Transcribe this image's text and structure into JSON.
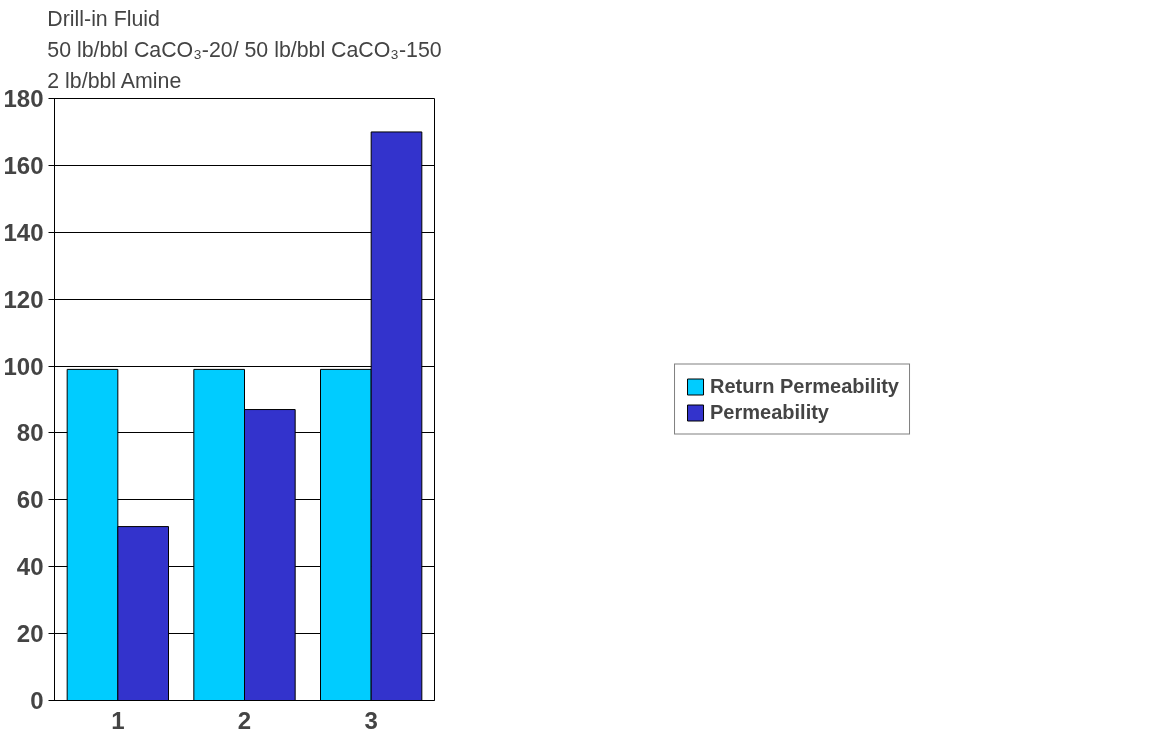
{
  "chart_data": {
    "type": "bar",
    "title": "Drill-in Fluid\n50 lb/bbl CaCO₃-20/ 50 lb/bbl CaCO₃-150\n2 lb/bbl Amine",
    "categories": [
      "1",
      "2",
      "3"
    ],
    "series": [
      {
        "name": "Return Permeability",
        "color": "#00ccff",
        "values": [
          99,
          99,
          99
        ]
      },
      {
        "name": "Permeability",
        "color": "#3333cc",
        "values": [
          52,
          87,
          170
        ]
      }
    ],
    "ylim": [
      0,
      180
    ],
    "yticks": [
      0,
      20,
      40,
      60,
      80,
      100,
      120,
      140,
      160,
      180
    ],
    "grid": "y",
    "legend": "right"
  }
}
